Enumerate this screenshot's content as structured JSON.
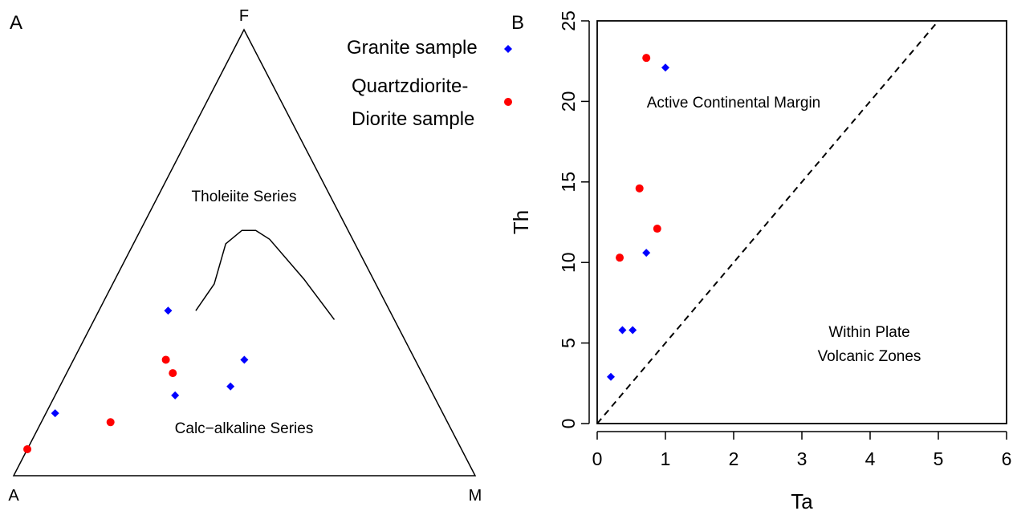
{
  "colors": {
    "granite": "#0000ff",
    "diorite": "#ff0000",
    "line": "#000000"
  },
  "legend": {
    "granite_label": "Granite sample",
    "diorite_label_1": "Quartzdiorite-",
    "diorite_label_2": "Diorite sample"
  },
  "chart_data": [
    {
      "panel_label": "A",
      "type": "scatter",
      "subtype": "ternary-AFM",
      "vertices": {
        "top": "F",
        "left": "A",
        "right": "M"
      },
      "regions": [
        "Tholeiite Series",
        "Calc−alkaline Series"
      ],
      "boundary_curve": [
        {
          "a": 0.42,
          "f": 0.37,
          "m": 0.21
        },
        {
          "a": 0.35,
          "f": 0.43,
          "m": 0.22
        },
        {
          "a": 0.28,
          "f": 0.52,
          "m": 0.2
        },
        {
          "a": 0.23,
          "f": 0.55,
          "m": 0.22
        },
        {
          "a": 0.2,
          "f": 0.55,
          "m": 0.25
        },
        {
          "a": 0.18,
          "f": 0.53,
          "m": 0.29
        },
        {
          "a": 0.15,
          "f": 0.44,
          "m": 0.41
        },
        {
          "a": 0.13,
          "f": 0.35,
          "m": 0.52
        }
      ],
      "series": [
        {
          "name": "Granite sample",
          "marker": "diamond",
          "points": [
            {
              "a": 0.84,
              "f": 0.14,
              "m": 0.02
            },
            {
              "a": 0.56,
              "f": 0.18,
              "m": 0.26
            },
            {
              "a": 0.43,
              "f": 0.2,
              "m": 0.37
            },
            {
              "a": 0.37,
              "f": 0.26,
              "m": 0.37
            },
            {
              "a": 0.48,
              "f": 0.37,
              "m": 0.15
            }
          ]
        },
        {
          "name": "Quartzdiorite-Diorite sample",
          "marker": "circle",
          "points": [
            {
              "a": 0.95,
              "f": 0.06,
              "m": 0.0
            },
            {
              "a": 0.73,
              "f": 0.12,
              "m": 0.15
            },
            {
              "a": 0.54,
              "f": 0.26,
              "m": 0.2
            },
            {
              "a": 0.54,
              "f": 0.23,
              "m": 0.23
            }
          ]
        }
      ]
    },
    {
      "panel_label": "B",
      "type": "scatter",
      "xlabel": "Ta",
      "ylabel": "Th",
      "xlim": [
        0,
        6
      ],
      "ylim": [
        0,
        25
      ],
      "x_ticks": [
        0,
        1,
        2,
        3,
        4,
        5,
        6
      ],
      "y_ticks": [
        0,
        5,
        10,
        15,
        20,
        25
      ],
      "annotations": {
        "active_margin": "Active Continental Margin",
        "within_plate_1": "Within Plate",
        "within_plate_2": "Volcanic Zones"
      },
      "divider_line": {
        "style": "dashed",
        "from": [
          0,
          0
        ],
        "to": [
          6,
          30
        ]
      },
      "series": [
        {
          "name": "Granite sample",
          "marker": "diamond",
          "points": [
            {
              "x": 0.2,
              "y": 2.9
            },
            {
              "x": 0.37,
              "y": 5.8
            },
            {
              "x": 0.52,
              "y": 5.8
            },
            {
              "x": 0.72,
              "y": 10.6
            },
            {
              "x": 1.0,
              "y": 22.1
            }
          ]
        },
        {
          "name": "Quartzdiorite-Diorite sample",
          "marker": "circle",
          "points": [
            {
              "x": 0.33,
              "y": 10.3
            },
            {
              "x": 0.62,
              "y": 14.6
            },
            {
              "x": 0.88,
              "y": 12.1
            },
            {
              "x": 0.72,
              "y": 22.7
            }
          ]
        }
      ]
    }
  ]
}
